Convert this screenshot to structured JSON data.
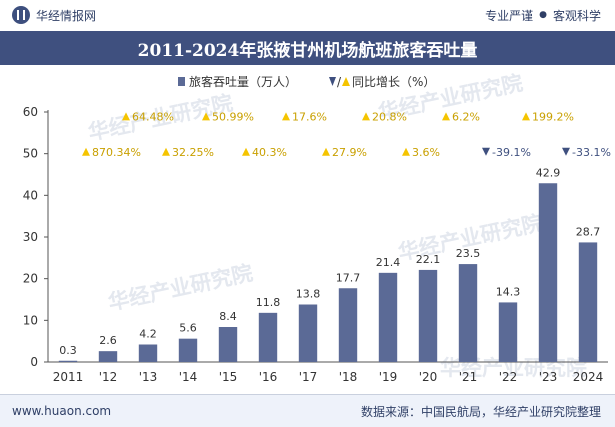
{
  "header": {
    "brand": "华经情报网",
    "tagline_left": "专业严谨",
    "tagline_right": "客观科学"
  },
  "footer": {
    "website": "www.huaon.com",
    "source": "数据来源：中国民航局，华经产业研究院整理"
  },
  "watermark": "华经产业研究院",
  "colors": {
    "bar": "#5b6a96",
    "up": "#f5c400",
    "down": "#3f507f",
    "title_band": "#3f507f"
  },
  "chart_data": {
    "type": "bar",
    "title": "2011-2024年张掖甘州机场航班旅客吞吐量",
    "legend": {
      "bar_label": "旅客吞吐量（万人）",
      "growth_label": "同比增长（%）",
      "placement": "top"
    },
    "categories": [
      "2011",
      "'12",
      "'13",
      "'14",
      "'15",
      "'16",
      "'17",
      "'18",
      "'19",
      "'20",
      "'21",
      "'22",
      "'23",
      "2024"
    ],
    "series": [
      {
        "name": "旅客吞吐量（万人）",
        "values": [
          0.3,
          2.6,
          4.2,
          5.6,
          8.4,
          11.8,
          13.8,
          17.7,
          21.4,
          22.1,
          23.5,
          14.3,
          42.9,
          28.7
        ]
      }
    ],
    "growth": [
      {
        "category": "'12",
        "text": "870.34%",
        "direction": "up",
        "row": "lower"
      },
      {
        "category": "'13",
        "text": "64.48%",
        "direction": "up",
        "row": "upper"
      },
      {
        "category": "'14",
        "text": "32.25%",
        "direction": "up",
        "row": "lower"
      },
      {
        "category": "'15",
        "text": "50.99%",
        "direction": "up",
        "row": "upper"
      },
      {
        "category": "'16",
        "text": "40.3%",
        "direction": "up",
        "row": "lower"
      },
      {
        "category": "'17",
        "text": "17.6%",
        "direction": "up",
        "row": "upper"
      },
      {
        "category": "'18",
        "text": "27.9%",
        "direction": "up",
        "row": "lower"
      },
      {
        "category": "'19",
        "text": "20.8%",
        "direction": "up",
        "row": "upper"
      },
      {
        "category": "'20",
        "text": "3.6%",
        "direction": "up",
        "row": "lower"
      },
      {
        "category": "'21",
        "text": "6.2%",
        "direction": "up",
        "row": "upper"
      },
      {
        "category": "'22",
        "text": "-39.1%",
        "direction": "down",
        "row": "lower"
      },
      {
        "category": "'23",
        "text": "199.2%",
        "direction": "up",
        "row": "upper"
      },
      {
        "category": "2024",
        "text": "-33.1%",
        "direction": "down",
        "row": "lower"
      }
    ],
    "ylim": [
      0,
      60
    ],
    "yticks": [
      0,
      10,
      20,
      30,
      40,
      50,
      60
    ],
    "grid": false
  }
}
